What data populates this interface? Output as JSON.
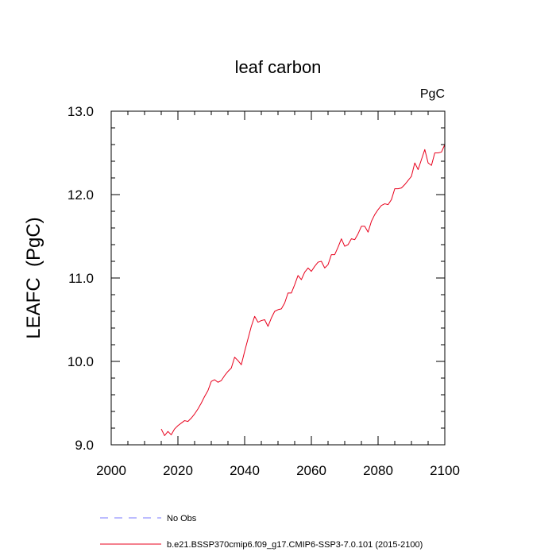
{
  "chart_data": {
    "type": "line",
    "title": "leaf carbon",
    "units_label": "PgC",
    "ylabel": "LEAFC  (PgC)",
    "xlabel": "",
    "xlim": [
      2000,
      2100
    ],
    "ylim": [
      9.0,
      13.0
    ],
    "x_ticks": [
      2000,
      2020,
      2040,
      2060,
      2080,
      2100
    ],
    "y_ticks": [
      9.0,
      10.0,
      11.0,
      12.0,
      13.0
    ],
    "x_tick_labels": [
      "2000",
      "2020",
      "2040",
      "2060",
      "2080",
      "2100"
    ],
    "y_tick_labels": [
      "9.0",
      "10.0",
      "11.0",
      "12.0",
      "13.0"
    ],
    "grid": false,
    "legend_position": "bottom",
    "legend": [
      {
        "label": "No Obs",
        "color": "#7a7aff",
        "style": "dashed"
      },
      {
        "label": "b.e21.BSSP370cmip6.f09_g17.CMIP6-SSP3-7.0.101 (2015-2100)",
        "color": "#e8001c",
        "style": "solid"
      }
    ],
    "series": [
      {
        "color": "#e8001c",
        "x": [
          2015,
          2016,
          2017,
          2018,
          2019,
          2020,
          2021,
          2022,
          2023,
          2024,
          2025,
          2026,
          2027,
          2028,
          2029,
          2030,
          2031,
          2032,
          2033,
          2034,
          2035,
          2036,
          2037,
          2038,
          2039,
          2040,
          2041,
          2042,
          2043,
          2044,
          2045,
          2046,
          2047,
          2048,
          2049,
          2050,
          2051,
          2052,
          2053,
          2054,
          2055,
          2056,
          2057,
          2058,
          2059,
          2060,
          2061,
          2062,
          2063,
          2064,
          2065,
          2066,
          2067,
          2068,
          2069,
          2070,
          2071,
          2072,
          2073,
          2074,
          2075,
          2076,
          2077,
          2078,
          2079,
          2080,
          2081,
          2082,
          2083,
          2084,
          2085,
          2086,
          2087,
          2088,
          2089,
          2090,
          2091,
          2092,
          2093,
          2094,
          2095,
          2096,
          2097,
          2098,
          2099,
          2100
        ],
        "y": [
          9.19,
          9.11,
          9.16,
          9.12,
          9.19,
          9.23,
          9.26,
          9.29,
          9.28,
          9.32,
          9.37,
          9.43,
          9.5,
          9.58,
          9.65,
          9.76,
          9.78,
          9.75,
          9.77,
          9.83,
          9.88,
          9.92,
          10.05,
          10.01,
          9.96,
          10.12,
          10.27,
          10.42,
          10.54,
          10.47,
          10.49,
          10.5,
          10.42,
          10.52,
          10.6,
          10.62,
          10.63,
          10.7,
          10.82,
          10.82,
          10.92,
          11.03,
          10.98,
          11.07,
          11.12,
          11.08,
          11.14,
          11.19,
          11.2,
          11.12,
          11.16,
          11.28,
          11.28,
          11.37,
          11.47,
          11.38,
          11.4,
          11.47,
          11.46,
          11.53,
          11.62,
          11.62,
          11.55,
          11.68,
          11.76,
          11.82,
          11.87,
          11.89,
          11.88,
          11.94,
          12.07,
          12.07,
          12.08,
          12.12,
          12.17,
          12.22,
          12.38,
          12.3,
          12.42,
          12.54,
          12.38,
          12.35,
          12.5,
          12.5,
          12.51,
          12.6
        ]
      }
    ]
  }
}
